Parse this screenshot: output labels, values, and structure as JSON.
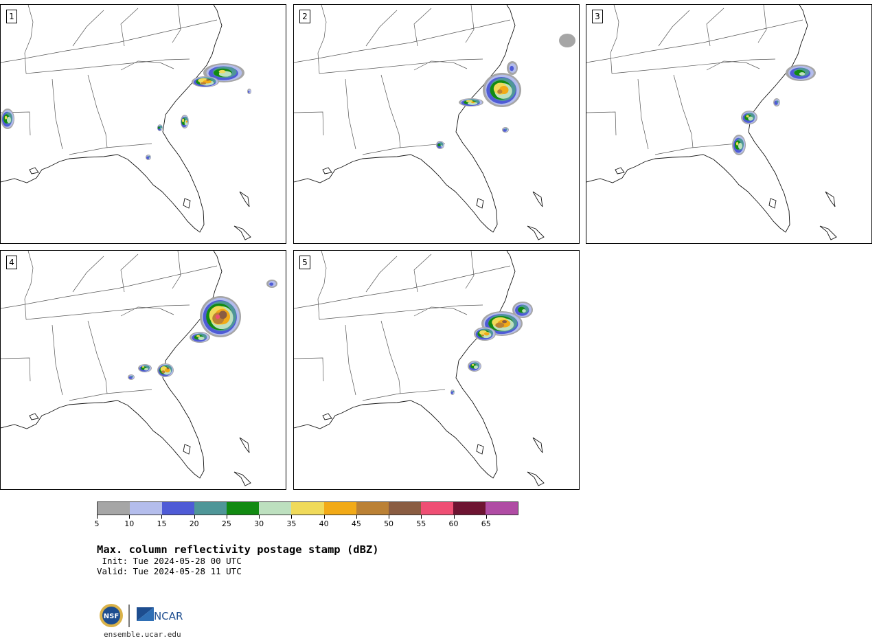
{
  "panels": [
    {
      "label": "1"
    },
    {
      "label": "2"
    },
    {
      "label": "3"
    },
    {
      "label": "4"
    },
    {
      "label": "5"
    }
  ],
  "colorbar": {
    "colors": [
      "#a6a6a6",
      "#b4bdec",
      "#4f5bd6",
      "#4f9698",
      "#128a12",
      "#bde0bf",
      "#f0da5a",
      "#f2aa17",
      "#bb8135",
      "#8a5d42",
      "#ef4f74",
      "#6e1432",
      "#b04ca4"
    ],
    "tick_labels": [
      "5",
      "10",
      "15",
      "20",
      "25",
      "30",
      "35",
      "40",
      "45",
      "50",
      "55",
      "60",
      "65"
    ]
  },
  "title": "Max. column reflectivity postage stamp (dBZ)",
  "init_line": " Init: Tue 2024-05-28 00 UTC",
  "valid_line": "Valid: Tue 2024-05-28 11 UTC",
  "logos": {
    "nsf_text": "NSF",
    "ncar_text": "NCAR"
  },
  "url": "ensemble.ucar.edu"
}
